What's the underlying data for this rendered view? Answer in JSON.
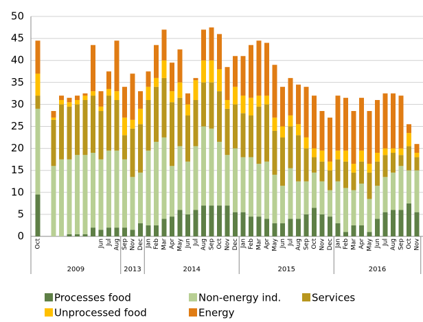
{
  "chart_data": {
    "type": "stacked-bar",
    "categories": [
      "Oct",
      null,
      null,
      null,
      null,
      null,
      null,
      null,
      "Jun",
      "Jul",
      "Aug",
      "Sep",
      "Nov",
      "Dec",
      "Jan",
      "Feb",
      "Mar",
      "Apr",
      "May",
      "Jun",
      "Jul",
      "Aug",
      "Sep",
      "Oct",
      "Nov",
      "Dec",
      "Jan",
      "Feb",
      "Mar",
      "Apr",
      "May",
      "Jun",
      "Jul",
      "Aug",
      "Sep",
      "Oct",
      "Nov",
      "Dec",
      "Jan",
      "Feb",
      "Mar",
      "Apr",
      "May",
      "Jun",
      "Jul",
      "Aug",
      "Sep",
      "Oct",
      "Nov"
    ],
    "years": [
      "2009",
      "2013",
      "2014",
      "2015",
      "2016"
    ],
    "series": [
      {
        "name": "Processes food",
        "color": "#5e7f46",
        "values": [
          9.5,
          null,
          0,
          0,
          0.5,
          0.5,
          0.5,
          2,
          1.5,
          2,
          2,
          2,
          1.5,
          3,
          2.5,
          2.5,
          4,
          4.5,
          6,
          5,
          6,
          7,
          7,
          7,
          7,
          5.5,
          5.5,
          4.5,
          4.5,
          4,
          3,
          3,
          4,
          4,
          5,
          6.5,
          5,
          4.5,
          3,
          1,
          2.5,
          2.5,
          1,
          4,
          5.5,
          6,
          6,
          7.5,
          5.5
        ]
      },
      {
        "name": "Non-energy ind.",
        "color": "#b8cf94",
        "values": [
          19.5,
          null,
          16,
          17.5,
          17,
          18,
          18,
          17,
          16,
          17.5,
          17.5,
          15.5,
          12,
          11.5,
          17,
          19,
          18.5,
          11.5,
          14.5,
          12,
          14.5,
          18,
          17.5,
          14.5,
          11.5,
          14.5,
          12.5,
          13.5,
          12,
          13,
          11,
          8.5,
          11.5,
          8.5,
          7.5,
          8,
          7.5,
          6,
          9.5,
          10,
          8,
          9.5,
          7.5,
          7.5,
          8,
          8.5,
          10,
          7.5,
          9.5
        ]
      },
      {
        "name": "Services",
        "color": "#b8961e",
        "values": [
          3,
          null,
          10.5,
          12.5,
          12,
          11.5,
          12.5,
          13,
          11,
          12.5,
          11.5,
          5.5,
          11,
          11,
          11.5,
          12.5,
          13.5,
          14.5,
          11,
          10.5,
          10.5,
          10,
          10.5,
          11.5,
          10.5,
          10,
          10,
          9.5,
          13,
          13,
          10,
          11,
          9.5,
          10.5,
          7.5,
          3.5,
          4.5,
          4.5,
          5,
          6,
          4,
          5,
          6,
          5.5,
          5,
          4.5,
          2.5,
          5.5,
          3
        ]
      },
      {
        "name": "Unprocessed food",
        "color": "#ffc000",
        "values": [
          5,
          null,
          0.5,
          1,
          1,
          1,
          1,
          1,
          1,
          1.5,
          2,
          4,
          2,
          3.5,
          3,
          2,
          4,
          2.5,
          3.5,
          2.5,
          4.5,
          5,
          5,
          5,
          2,
          4,
          4,
          4,
          2.5,
          2,
          3,
          2.5,
          2.5,
          2.5,
          2.5,
          2,
          2.5,
          2,
          2,
          2.5,
          2,
          2.5,
          2,
          2,
          1.5,
          1,
          1.5,
          3,
          1
        ]
      },
      {
        "name": "Energy",
        "color": "#e07c14",
        "values": [
          7.5,
          null,
          1.5,
          1,
          1,
          1,
          0.5,
          10.5,
          3.5,
          4,
          11.5,
          7,
          10.5,
          4,
          3.5,
          7.5,
          7,
          6.5,
          7.5,
          2.5,
          0.5,
          7,
          7.5,
          8,
          7.5,
          7,
          9,
          12,
          12.5,
          12,
          12,
          9,
          8.5,
          9,
          11.5,
          12,
          9,
          10,
          12.5,
          12,
          12,
          12,
          12,
          12,
          12.5,
          12.5,
          12,
          2,
          2
        ]
      }
    ],
    "ylim": [
      0,
      50
    ],
    "yticks": [
      0,
      5,
      10,
      15,
      20,
      25,
      30,
      35,
      40,
      45,
      50
    ],
    "grid": true
  }
}
